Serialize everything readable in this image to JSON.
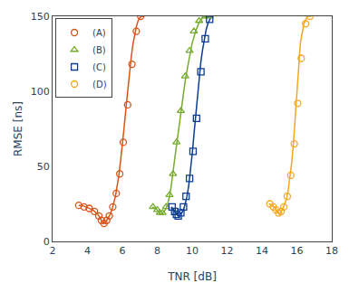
{
  "chart_data": {
    "type": "line",
    "xlabel": "TNR [dB]",
    "ylabel": "RMSE [ns]",
    "xlim": [
      2,
      18
    ],
    "ylim": [
      0,
      150
    ],
    "xticks": [
      2,
      4,
      6,
      8,
      10,
      12,
      14,
      16,
      18
    ],
    "yticks": [
      0,
      50,
      100,
      150
    ],
    "grid": false,
    "legend": "upper left",
    "series": [
      {
        "name": "(A)",
        "color": "#d95319",
        "marker": "circle",
        "line_style": "solid",
        "line": {
          "x": [
            3.5,
            3.7,
            3.9,
            4.1,
            4.3,
            4.5,
            4.6,
            4.7,
            4.75,
            4.8,
            4.85,
            4.9,
            4.95,
            5.0,
            5.05,
            5.1,
            5.15,
            5.2,
            5.3,
            5.4,
            5.5,
            5.6,
            5.7,
            5.8,
            5.9,
            6.0,
            6.1,
            6.2,
            6.3,
            6.4,
            6.5,
            6.6,
            6.7,
            6.8,
            6.9,
            7.0,
            7.1,
            7.2
          ],
          "y": [
            24,
            24,
            23,
            22,
            21,
            19,
            18,
            16,
            15,
            14,
            13,
            12,
            12,
            12,
            13,
            14,
            15,
            16,
            18,
            21,
            25,
            30,
            37,
            44,
            54,
            64,
            76,
            88,
            100,
            112,
            122,
            131,
            138,
            143,
            147,
            149,
            150,
            150
          ]
        },
        "points": {
          "x": [
            3.5,
            3.8,
            4.1,
            4.4,
            4.65,
            4.8,
            4.95,
            5.1,
            5.25,
            5.45,
            5.65,
            5.85,
            6.05,
            6.3,
            6.55,
            6.8,
            7.05
          ],
          "y": [
            24,
            23,
            22,
            20,
            17,
            14,
            12,
            14,
            17,
            23,
            32,
            45,
            66,
            91,
            118,
            140,
            150
          ]
        }
      },
      {
        "name": "(B)",
        "color": "#77ac30",
        "marker": "triangle",
        "line_style": "solid",
        "line": {
          "x": [
            7.7,
            7.9,
            8.0,
            8.05,
            8.1,
            8.15,
            8.2,
            8.25,
            8.3,
            8.4,
            8.5,
            8.6,
            8.7,
            8.8,
            9.0,
            9.2,
            9.4,
            9.6,
            9.8,
            10.0,
            10.2,
            10.4,
            10.6,
            10.8,
            11.0,
            11.1
          ],
          "y": [
            23,
            22,
            21,
            20,
            19,
            18,
            18,
            18,
            19,
            20,
            22,
            25,
            30,
            37,
            55,
            73,
            90,
            107,
            120,
            132,
            140,
            146,
            149,
            150,
            150,
            150
          ]
        },
        "points": {
          "x": [
            7.75,
            8.0,
            8.15,
            8.3,
            8.5,
            8.7,
            8.9,
            9.1,
            9.35,
            9.6,
            9.85,
            10.1,
            10.4,
            10.75,
            11.0
          ],
          "y": [
            23,
            21,
            19,
            19,
            23,
            31,
            45,
            66,
            87,
            110,
            127,
            140,
            147,
            150,
            150
          ]
        }
      },
      {
        "name": "(C)",
        "color": "#0b3d91",
        "marker": "square",
        "line_style": "solid",
        "line": {
          "x": [
            8.8,
            8.9,
            8.95,
            9.0,
            9.05,
            9.1,
            9.15,
            9.2,
            9.25,
            9.3,
            9.4,
            9.5,
            9.6,
            9.7,
            9.8,
            9.9,
            10.0,
            10.1,
            10.2,
            10.3,
            10.4,
            10.5,
            10.6,
            10.7,
            10.8,
            10.9,
            11.0,
            11.1,
            11.2
          ],
          "y": [
            23,
            22,
            21,
            20,
            19,
            18,
            18,
            17,
            17,
            18,
            19,
            21,
            25,
            30,
            37,
            46,
            58,
            71,
            84,
            97,
            109,
            120,
            128,
            135,
            141,
            145,
            148,
            150,
            150
          ]
        },
        "points": {
          "x": [
            8.85,
            9.0,
            9.1,
            9.2,
            9.35,
            9.5,
            9.65,
            9.85,
            10.05,
            10.25,
            10.5,
            10.75,
            11.0
          ],
          "y": [
            23,
            20,
            18,
            17,
            19,
            23,
            30,
            42,
            60,
            82,
            113,
            135,
            148
          ]
        }
      },
      {
        "name": "(D)",
        "color": "#f5a623",
        "marker": "circle",
        "line_style": "solid",
        "line": {
          "x": [
            14.4,
            14.6,
            14.7,
            14.75,
            14.8,
            14.85,
            14.9,
            14.95,
            15.0,
            15.05,
            15.1,
            15.2,
            15.3,
            15.4,
            15.5,
            15.6,
            15.7,
            15.8,
            15.9,
            16.0,
            16.1,
            16.2,
            16.4,
            16.6,
            16.8
          ],
          "y": [
            25,
            24,
            23,
            22,
            21,
            20,
            19,
            19,
            18,
            19,
            20,
            22,
            25,
            28,
            34,
            42,
            52,
            65,
            82,
            100,
            118,
            132,
            145,
            150,
            150
          ]
        },
        "points": {
          "x": [
            14.45,
            14.65,
            14.8,
            14.95,
            15.1,
            15.25,
            15.45,
            15.65,
            15.85,
            16.05,
            16.25,
            16.5,
            16.75
          ],
          "y": [
            25,
            23,
            21,
            19,
            20,
            23,
            30,
            44,
            65,
            92,
            122,
            145,
            150
          ]
        }
      }
    ]
  }
}
